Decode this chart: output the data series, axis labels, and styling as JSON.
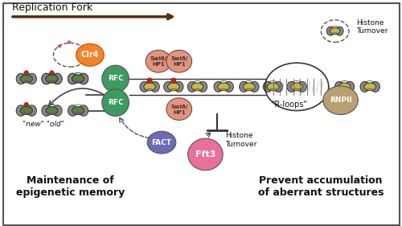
{
  "background_color": "#f5f5f5",
  "border_color": "#333333",
  "title_arrow_text": "Replication Fork",
  "title_arrow_color": "#5a2d0c",
  "left_label1": "Maintenance of",
  "left_label2": "epigenetic memory",
  "right_label1": "Prevent accumulation",
  "right_label2": "of aberrant structures",
  "new_old_text": "\"new\" \"old\"",
  "rloops_text": "\"R-loops\"",
  "histone_turnover_text1": "Histone",
  "histone_turnover_text2": "Turnover",
  "clr4_color": "#f47d20",
  "rfc_color": "#3d9a60",
  "swi6_hp1_color": "#e8927a",
  "fact_color": "#6a6db5",
  "fft3_color": "#e8709a",
  "rnpii_color": "#b8a070",
  "nucleosome_disk_color": "#c8b840",
  "nucleosome_sphere_color": "#888888",
  "nucleosome_outline": "#333333",
  "heterochromatin_disk_color": "#5a8040",
  "red_dot_color": "#cc2222",
  "dna_line_color": "#333333",
  "arrow_color": "#5a2d0c",
  "dashed_arrow_color": "#333333",
  "inhibit_color": "#333333"
}
